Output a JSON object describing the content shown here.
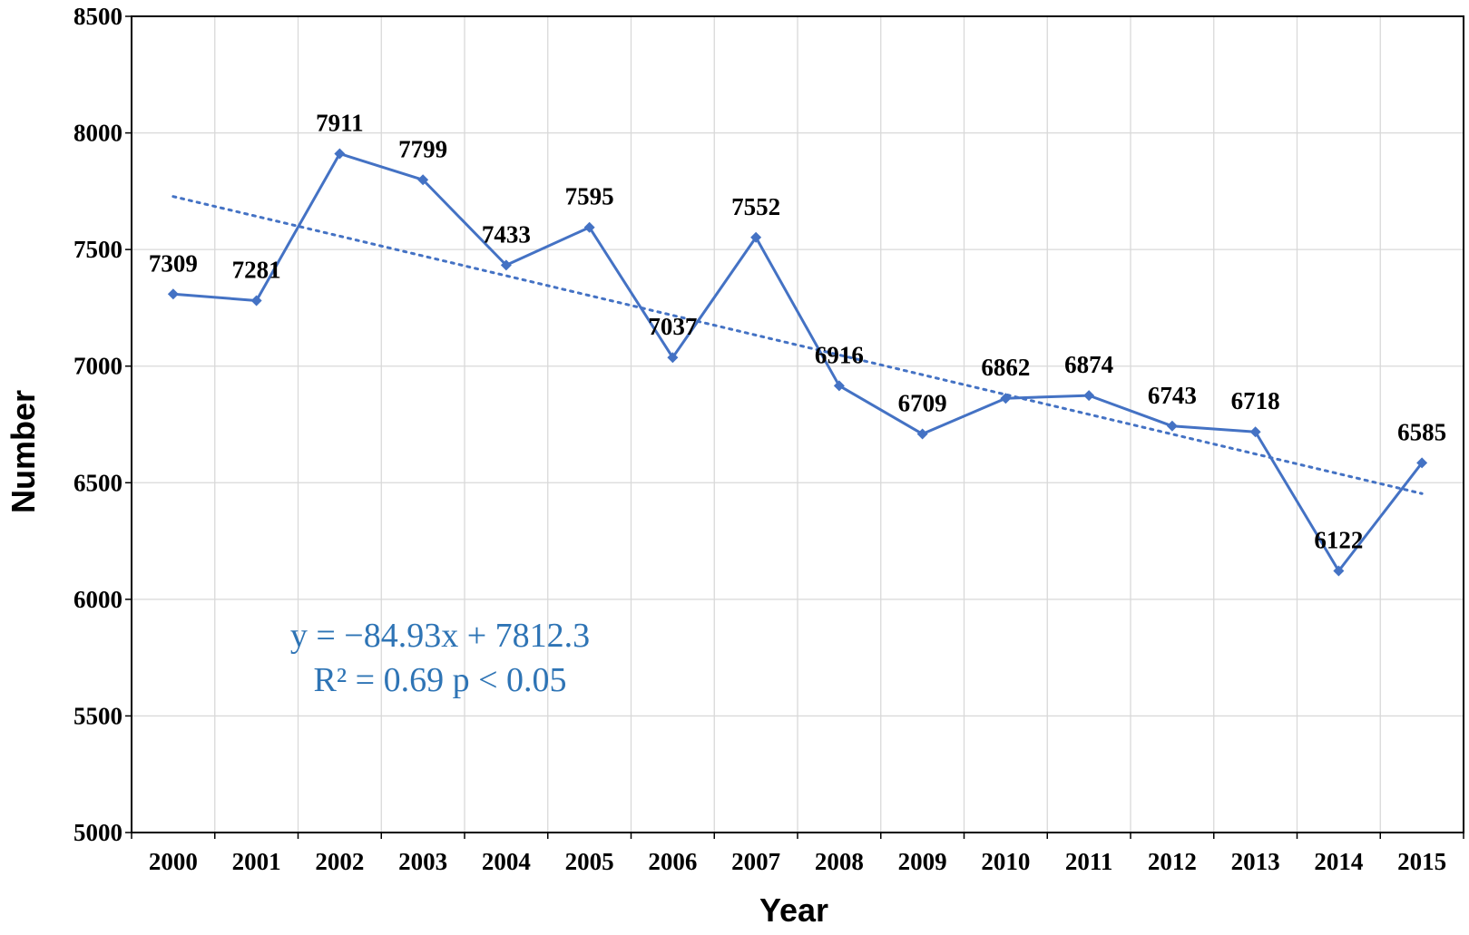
{
  "chart_data": {
    "type": "line",
    "title": "",
    "xlabel": "Year",
    "ylabel": "Number",
    "ylim": [
      5000,
      8500
    ],
    "yticks": [
      5000,
      5500,
      6000,
      6500,
      7000,
      7500,
      8000,
      8500
    ],
    "grid": true,
    "categories": [
      "2000",
      "2001",
      "2002",
      "2003",
      "2004",
      "2005",
      "2006",
      "2007",
      "2008",
      "2009",
      "2010",
      "2011",
      "2012",
      "2013",
      "2014",
      "2015"
    ],
    "series": [
      {
        "name": "Number",
        "values": [
          7309,
          7281,
          7911,
          7799,
          7433,
          7595,
          7037,
          7552,
          6916,
          6709,
          6862,
          6874,
          6743,
          6718,
          6122,
          6585
        ],
        "labels": [
          "7309",
          "7281",
          "7911",
          "7799",
          "7433",
          "7595",
          "7037",
          "7552",
          "6916",
          "6709",
          "6862",
          "6874",
          "6743",
          "6718",
          "6122",
          "6585"
        ],
        "color": "#4472C4",
        "marker": "diamond"
      }
    ],
    "trendline": {
      "type": "linear",
      "style": "dotted",
      "slope": -84.93,
      "intercept": 7812.3,
      "r_squared": 0.69,
      "color": "#4472C4"
    },
    "annotations": {
      "equation": "y = −84.93x + 7812.3",
      "stats": "R² = 0.69  p < 0.05",
      "color": "#2E74B5"
    }
  }
}
